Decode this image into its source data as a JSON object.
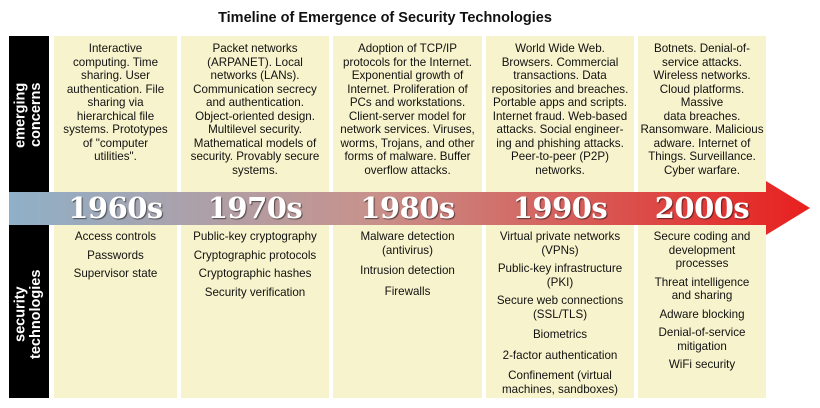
{
  "title": "Timeline of Emergence of Security Technologies",
  "sidebar": {
    "top_label": "emerging\nconcerns",
    "bottom_label": "security\ntechnologies"
  },
  "colors": {
    "panel": "#f7f3cc",
    "arrow_start": "#8fb0c8",
    "arrow_end": "#e8201e",
    "sidebar": "#000000"
  },
  "eras": [
    {
      "decade": "1960s",
      "concerns": "Interactive\ncomputing.  Time\nsharing.  User\nauthentication. File\nsharing via\nhierarchical file\nsystems. Prototypes\nof \"computer\nutilities\".",
      "technologies": [
        "Access controls",
        "Passwords",
        "Supervisor state"
      ]
    },
    {
      "decade": "1970s",
      "concerns": "Packet networks\n(ARPANET). Local\nnetworks (LANs).\nCommunication secrecy\nand authentication.\nObject-oriented design.\nMultilevel security.\nMathematical models of\nsecurity. Provably secure\nsystems.",
      "technologies": [
        "Public-key cryptography",
        "Cryptographic protocols",
        "Cryptographic hashes",
        "Security verification"
      ]
    },
    {
      "decade": "1980s",
      "concerns": "Adoption of TCP/IP\nprotocols for the Internet.\nExponential growth of\nInternet.  Proliferation of\nPCs and workstations.\nClient-server model for\nnetwork services.  Viruses,\nworms, Trojans, and other\nforms of malware. Buffer\noverflow attacks.",
      "technologies": [
        "Malware detection\n(antivirus)",
        "Intrusion detection",
        "Firewalls"
      ]
    },
    {
      "decade": "1990s",
      "concerns": "World Wide Web.\nBrowsers. Commercial\ntransactions. Data\nrepositories and breaches.\nPortable apps and scripts.\nInternet fraud. Web-based\nattacks.  Social engineer-\ning and phishing attacks.\nPeer-to-peer (P2P)\nnetworks.",
      "technologies": [
        "Virtual private networks\n(VPNs)",
        "Public-key infrastructure\n(PKI)",
        "Secure web connections\n(SSL/TLS)",
        "Biometrics",
        "2-factor authentication",
        "Confinement (virtual\nmachines, sandboxes)"
      ]
    },
    {
      "decade": "2000s",
      "concerns": "Botnets. Denial-of-\nservice attacks.\nWireless networks.\nCloud platforms.\nMassive\ndata breaches.\nRansomware. Malicious\nadware. Internet of\nThings.  Surveillance.\nCyber warfare.",
      "technologies": [
        "Secure coding and\ndevelopment\nprocesses",
        "Threat intelligence\nand sharing",
        "Adware blocking",
        "Denial-of-service\nmitigation",
        "WiFi security"
      ]
    }
  ]
}
